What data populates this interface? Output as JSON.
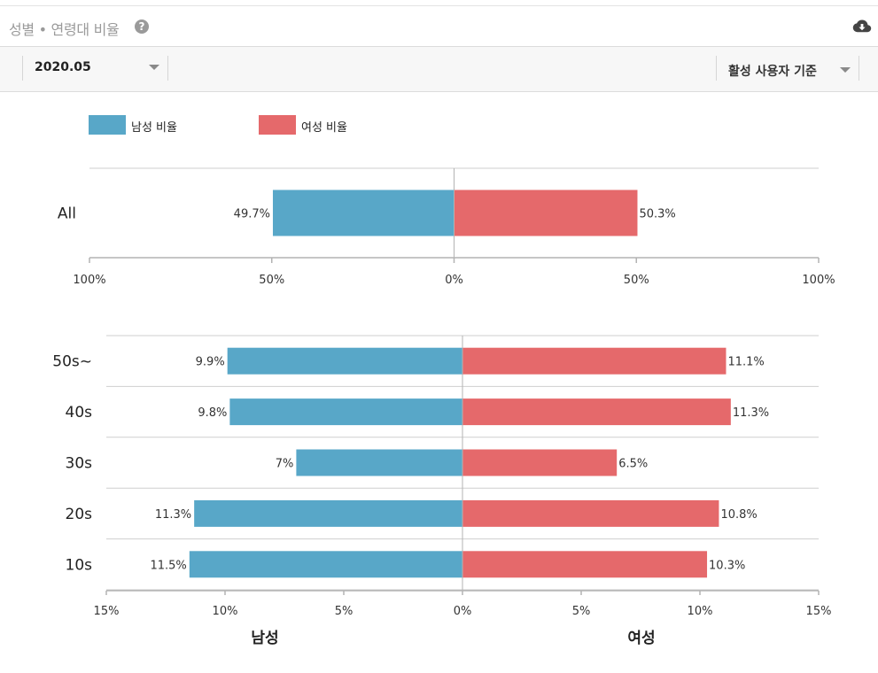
{
  "header": {
    "title": "성별 • 연령대 비율",
    "help_glyph": "?",
    "download_icon": "cloud-download-icon"
  },
  "toolbar": {
    "month": "2020.05",
    "basis": "활성 사용자 기준"
  },
  "legend": {
    "male_label": "남성 비율",
    "female_label": "여성 비율"
  },
  "colors": {
    "male": "#58a7c8",
    "female": "#e5696b",
    "grid": "#cfcfcf",
    "axis": "#b3b3b3"
  },
  "chart_data": [
    {
      "type": "bar",
      "orientation": "horizontal-diverging",
      "categories": [
        "All"
      ],
      "series": [
        {
          "name": "남성 비율",
          "values": [
            49.7
          ]
        },
        {
          "name": "여성 비율",
          "values": [
            50.3
          ]
        }
      ],
      "data_labels": {
        "male": [
          "49.7%"
        ],
        "female": [
          "50.3%"
        ]
      },
      "xlim": [
        -100,
        100
      ],
      "xticks": [
        "100%",
        "50%",
        "0%",
        "50%",
        "100%"
      ],
      "grid": true
    },
    {
      "type": "bar",
      "orientation": "horizontal-diverging",
      "categories": [
        "50s~",
        "40s",
        "30s",
        "20s",
        "10s"
      ],
      "series": [
        {
          "name": "남성",
          "values": [
            9.9,
            9.8,
            7,
            11.3,
            11.5
          ]
        },
        {
          "name": "여성",
          "values": [
            11.1,
            11.3,
            6.5,
            10.8,
            10.3
          ]
        }
      ],
      "data_labels": {
        "male": [
          "9.9%",
          "9.8%",
          "7%",
          "11.3%",
          "11.5%"
        ],
        "female": [
          "11.1%",
          "11.3%",
          "6.5%",
          "10.8%",
          "10.3%"
        ]
      },
      "xlim": [
        -15,
        15
      ],
      "xticks": [
        "15%",
        "10%",
        "5%",
        "0%",
        "5%",
        "10%",
        "15%"
      ],
      "xlabel_left": "남성",
      "xlabel_right": "여성",
      "grid": true
    }
  ]
}
